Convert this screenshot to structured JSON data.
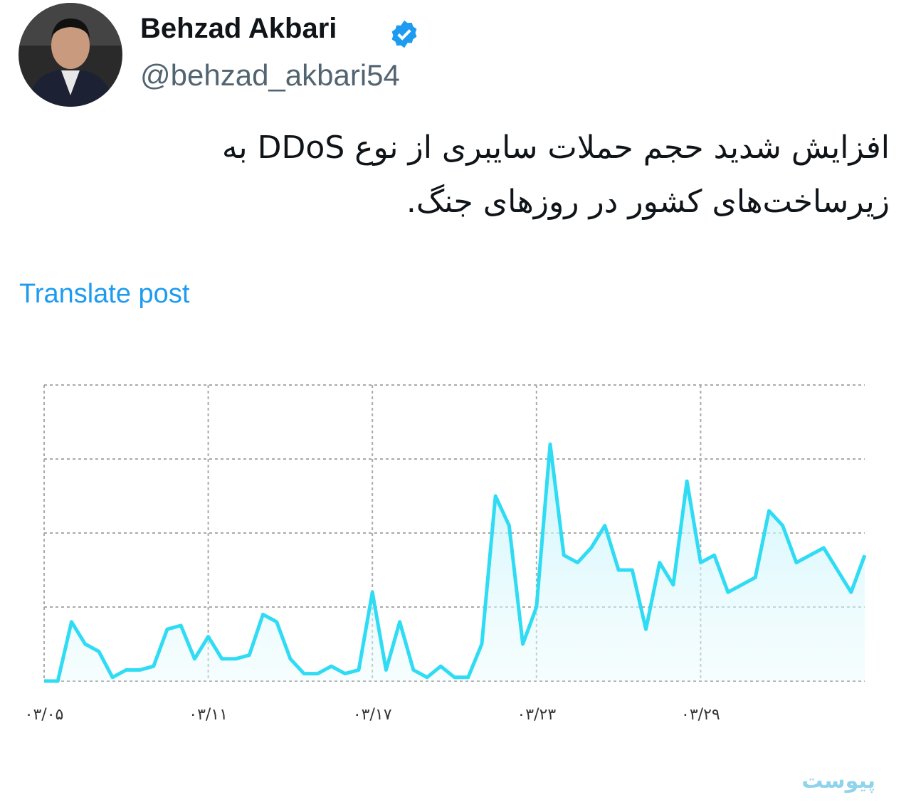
{
  "tweet": {
    "author": {
      "name": "Behzad Akbari",
      "handle": "@behzad_akbari54"
    },
    "text": "افزایش شدید حجم حملات سایبری از نوع DDoS به زیرساخت‌های کشور در روزهای جنگ.",
    "translate_link": "Translate post"
  },
  "chart_data": {
    "type": "line",
    "x": [
      0,
      0.5,
      1,
      1.5,
      2,
      2.5,
      3,
      3.5,
      4,
      4.5,
      5,
      5.5,
      6,
      6.5,
      7,
      7.5,
      8,
      8.5,
      9,
      9.5,
      10,
      10.5,
      11,
      11.5,
      12,
      12.5,
      13,
      13.5,
      14,
      14.5,
      15,
      15.5,
      16,
      16.5,
      17,
      17.5,
      18,
      18.5,
      19,
      19.5,
      20,
      20.5,
      21,
      21.5,
      22,
      22.5,
      23,
      23.5,
      24,
      24.5,
      25,
      25.5,
      26,
      26.5,
      27,
      27.5,
      28,
      28.5,
      29,
      29.5,
      30
    ],
    "series": [
      {
        "color": "#2fdcf4",
        "values": [
          0,
          0,
          0.8,
          0.5,
          0.4,
          0.05,
          0.15,
          0.15,
          0.2,
          0.7,
          0.75,
          0.3,
          0.6,
          0.3,
          0.3,
          0.35,
          0.9,
          0.8,
          0.3,
          0.1,
          0.1,
          0.2,
          0.1,
          0.15,
          1.2,
          0.15,
          0.8,
          0.15,
          0.05,
          0.2,
          0.05,
          0.05,
          0.5,
          2.5,
          2.1,
          0.5,
          1.0,
          3.2,
          1.7,
          1.6,
          1.8,
          2.1,
          1.5,
          1.5,
          0.7,
          1.6,
          1.3,
          2.7,
          1.6,
          1.7,
          1.2,
          1.3,
          1.4,
          2.3,
          2.1,
          1.6,
          1.7,
          1.8,
          1.5,
          1.2,
          1.7
        ]
      }
    ],
    "xlim": [
      0,
      30
    ],
    "xticks": [
      {
        "value": 0,
        "label": "۰۳/۰۵"
      },
      {
        "value": 6,
        "label": "۰۳/۱۱"
      },
      {
        "value": 12,
        "label": "۰۳/۱۷"
      },
      {
        "value": 18,
        "label": "۰۳/۲۳"
      },
      {
        "value": 24,
        "label": "۰۳/۲۹"
      }
    ],
    "ylim": [
      0,
      4
    ],
    "yticks": [
      0,
      1,
      2,
      3,
      4
    ],
    "grid": true
  },
  "watermark": "پیوست"
}
